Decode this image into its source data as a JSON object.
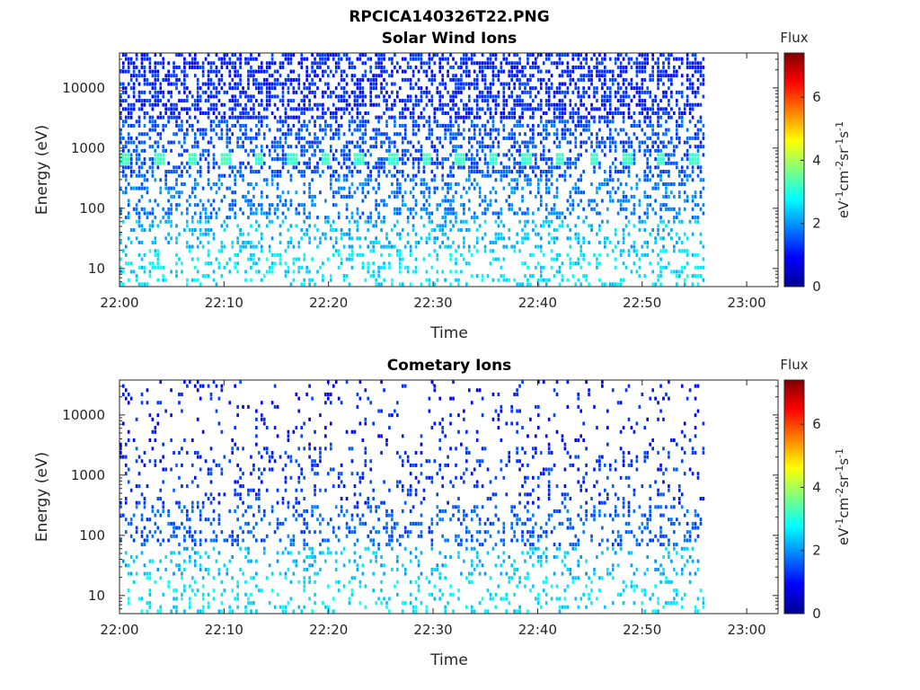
{
  "figure_title": "RPCICA140326T22.PNG",
  "chart_data": [
    {
      "type": "heatmap",
      "title": "Solar Wind Ions",
      "xlabel": "Time",
      "ylabel": "Energy (eV)",
      "x_ticks": [
        "22:00",
        "22:10",
        "22:20",
        "22:30",
        "22:40",
        "22:50",
        "23:00"
      ],
      "xlim": [
        "22:00",
        "23:03"
      ],
      "data_end": "22:56",
      "y_scale": "log",
      "ylim": [
        5,
        38000
      ],
      "y_ticks": [
        10,
        100,
        1000,
        10000
      ],
      "y_tick_labels": [
        "10",
        "100",
        "1000",
        "10000"
      ],
      "colorbar": {
        "title": "Flux",
        "label": "eV-1cm-2sr-1s-1",
        "range": [
          0,
          7.4
        ],
        "ticks": [
          0,
          2,
          4,
          6
        ],
        "colormap": "jet"
      },
      "pattern": {
        "high_energy_level": 1.2,
        "mid_energy_level": 1.8,
        "low_energy_level": 2.6,
        "periodic_band_energy_eV": 650,
        "periodic_band_level": 3.0,
        "periodic_band_interval_min": 3.2
      }
    },
    {
      "type": "heatmap",
      "title": "Cometary Ions",
      "xlabel": "Time",
      "ylabel": "Energy (eV)",
      "x_ticks": [
        "22:00",
        "22:10",
        "22:20",
        "22:30",
        "22:40",
        "22:50",
        "23:00"
      ],
      "xlim": [
        "22:00",
        "23:03"
      ],
      "data_end": "22:56",
      "y_scale": "log",
      "ylim": [
        5,
        38000
      ],
      "y_ticks": [
        10,
        100,
        1000,
        10000
      ],
      "y_tick_labels": [
        "10",
        "100",
        "1000",
        "10000"
      ],
      "colorbar": {
        "title": "Flux",
        "label": "eV-1cm-2sr-1s-1",
        "range": [
          0,
          7.4
        ],
        "ticks": [
          0,
          2,
          4,
          6
        ],
        "colormap": "jet"
      },
      "pattern": {
        "high_energy_level": 1.1,
        "mid_energy_level": 1.6,
        "low_energy_level": 2.6
      }
    }
  ]
}
